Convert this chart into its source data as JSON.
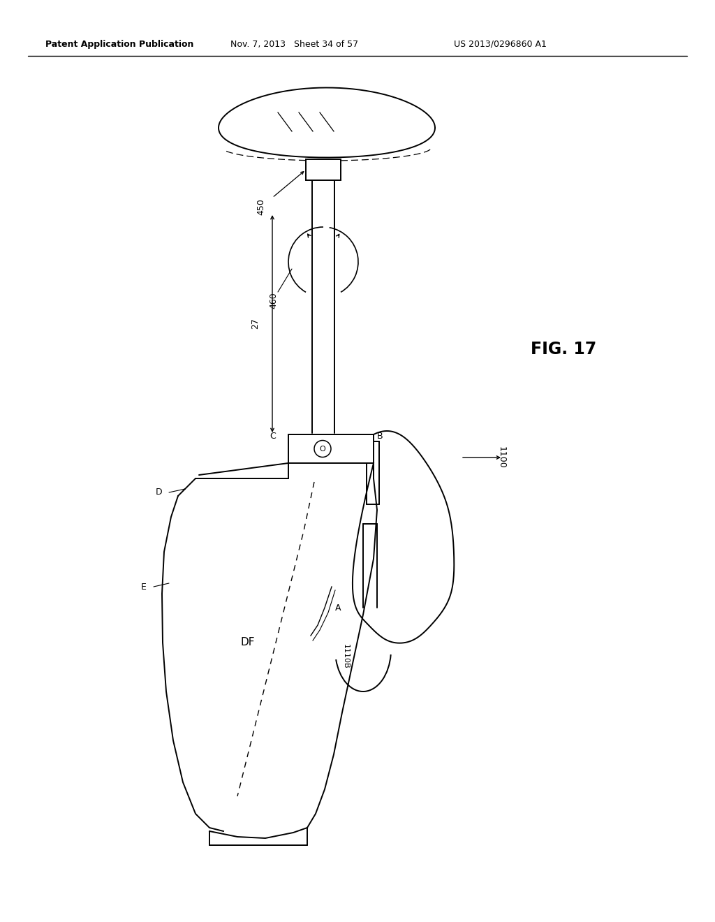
{
  "title": "FIG. 17",
  "header_left": "Patent Application Publication",
  "header_center": "Nov. 7, 2013   Sheet 34 of 57",
  "header_right": "US 2013/0296860 A1",
  "bg_color": "#ffffff",
  "label_450": "450",
  "label_460": "460",
  "label_27": "27",
  "label_C": "C",
  "label_D": "D",
  "label_E": "E",
  "label_O": "O",
  "label_B": "B",
  "label_1100": "1100",
  "label_1110B": "1110B",
  "label_A": "A",
  "label_DF": "DF"
}
